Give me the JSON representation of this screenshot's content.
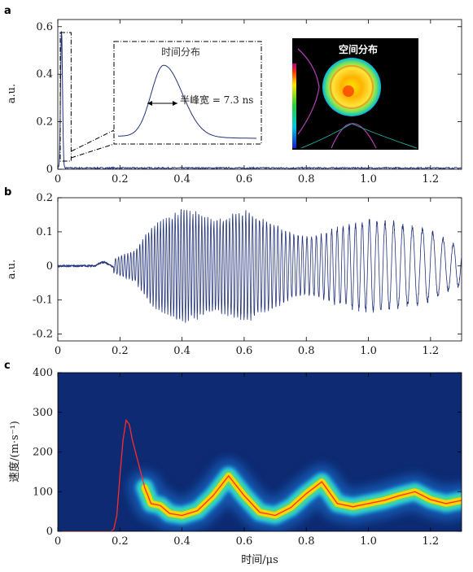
{
  "chart_data": [
    {
      "panel": "a",
      "type": "line",
      "ylabel": "a.u.",
      "xlim": [
        0,
        1.3
      ],
      "ylim": [
        0,
        0.63
      ],
      "xticks": [
        "0",
        "0.2",
        "0.4",
        "0.6",
        "0.8",
        "1.0",
        "1.2"
      ],
      "yticks": [
        "0",
        "0.2",
        "0.4",
        "0.6"
      ],
      "pulse": {
        "peak_x": 0.012,
        "peak_y": 0.58,
        "width": 0.0073
      },
      "baseline": 0.005,
      "line_color": "#23337a",
      "inset_temporal": {
        "title": "时间分布",
        "annotation": "半峰宽 = 7.3 ns"
      },
      "inset_spatial": {
        "title": "空间分布"
      }
    },
    {
      "panel": "b",
      "type": "line",
      "ylabel": "a.u.",
      "xlim": [
        0,
        1.3
      ],
      "ylim": [
        -0.22,
        0.2
      ],
      "xticks": [
        "0",
        "0.2",
        "0.4",
        "0.6",
        "0.8",
        "1.0",
        "1.2"
      ],
      "yticks": [
        "-0.2",
        "-0.1",
        "0",
        "0.1",
        "0.2"
      ],
      "signal_start_x": 0.18,
      "envelope_x": [
        0.15,
        0.2,
        0.25,
        0.3,
        0.35,
        0.4,
        0.45,
        0.5,
        0.55,
        0.6,
        0.65,
        0.7,
        0.75,
        0.8,
        0.85,
        0.9,
        0.95,
        1.0,
        1.05,
        1.1,
        1.15,
        1.2,
        1.25,
        1.3
      ],
      "envelope_amp": [
        0.01,
        0.03,
        0.05,
        0.12,
        0.15,
        0.17,
        0.16,
        0.14,
        0.15,
        0.17,
        0.15,
        0.13,
        0.1,
        0.09,
        0.1,
        0.12,
        0.13,
        0.14,
        0.14,
        0.13,
        0.12,
        0.11,
        0.08,
        0.06
      ],
      "line_color": "#23337a"
    },
    {
      "panel": "c",
      "type": "heatmap",
      "xlabel": "时间/μs",
      "ylabel": "速度/(m·s⁻¹)",
      "xlim": [
        0,
        1.3
      ],
      "ylim": [
        0,
        400
      ],
      "xticks": [
        "0",
        "0.2",
        "0.4",
        "0.6",
        "0.8",
        "1.0",
        "1.2"
      ],
      "yticks": [
        "0",
        "100",
        "200",
        "300",
        "400"
      ],
      "velocity_x": [
        0,
        0.17,
        0.18,
        0.19,
        0.2,
        0.21,
        0.22,
        0.23,
        0.24,
        0.26,
        0.28,
        0.3,
        0.33,
        0.36,
        0.4,
        0.45,
        0.5,
        0.55,
        0.6,
        0.65,
        0.7,
        0.75,
        0.8,
        0.85,
        0.9,
        0.95,
        1.0,
        1.05,
        1.1,
        1.15,
        1.2,
        1.25,
        1.3
      ],
      "velocity_y": [
        0,
        0,
        5,
        40,
        140,
        230,
        280,
        270,
        230,
        170,
        110,
        70,
        65,
        45,
        40,
        52,
        90,
        140,
        90,
        48,
        40,
        60,
        95,
        125,
        70,
        62,
        70,
        78,
        90,
        100,
        80,
        70,
        78
      ],
      "ridge_color": "#ffd400",
      "curve_color": "#ff2a2a",
      "background": "#0d2a72"
    }
  ],
  "panels": {
    "a": {
      "label": "a"
    },
    "b": {
      "label": "b"
    },
    "c": {
      "label": "c"
    }
  }
}
